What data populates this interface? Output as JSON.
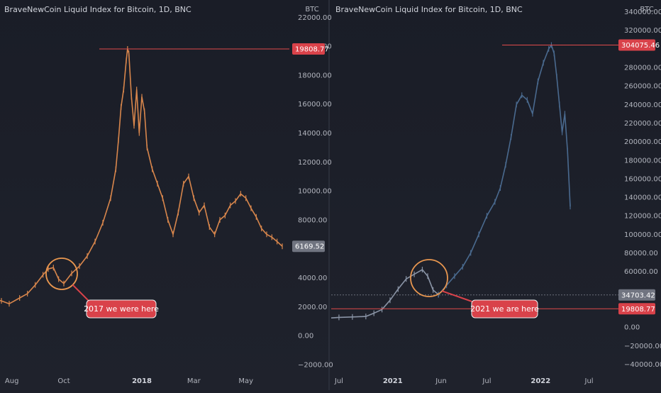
{
  "chart_data": [
    {
      "type": "line",
      "title": "BraveNewCoin Liquid Index for Bitcoin, 1D, BNC",
      "currency": "BTC",
      "y_ticks": [
        22000,
        20000,
        18000,
        16000,
        14000,
        12000,
        10000,
        8000,
        6000,
        4000,
        2000,
        0,
        -2000
      ],
      "y_tick_labels": [
        "22000.00",
        "20000.00",
        "18000.00",
        "16000.00",
        "14000.00",
        "12000.00",
        "10000.00",
        "8000.00",
        "",
        "4000.00",
        "2000.00",
        "0.00",
        "−2000.00"
      ],
      "ylim": [
        -2300,
        22700
      ],
      "x_labels": [
        {
          "label": "Aug",
          "x": 1,
          "bold": false
        },
        {
          "label": "Oct",
          "x": 3,
          "bold": false
        },
        {
          "label": "2018",
          "x": 6,
          "bold": true
        },
        {
          "label": "Mar",
          "x": 8,
          "bold": false
        },
        {
          "label": "May",
          "x": 10,
          "bold": false
        }
      ],
      "xlim": [
        0,
        12
      ],
      "series": [
        {
          "color": "#d8864c",
          "x": [
            -0.4,
            0.1,
            0.6,
            0.9,
            1.3,
            1.6,
            1.9,
            2.2,
            2.4,
            2.6,
            2.8,
            3.0,
            3.3,
            3.6,
            3.9,
            4.2,
            4.5,
            4.8,
            5.0,
            5.1,
            5.2,
            5.3,
            5.4,
            5.45,
            5.5,
            5.6,
            5.7,
            5.8,
            5.9,
            6.0,
            6.1,
            6.2,
            6.4,
            6.6,
            6.8,
            7.0,
            7.2,
            7.4,
            7.6,
            7.8,
            8.0,
            8.2,
            8.4,
            8.6,
            8.8,
            9.0,
            9.2,
            9.4,
            9.6,
            9.8,
            10.0,
            10.2,
            10.4,
            10.6,
            10.8,
            11.0,
            11.2,
            11.4
          ],
          "y": [
            2800,
            2600,
            2400,
            2200,
            2600,
            2900,
            3500,
            4200,
            4600,
            4700,
            3900,
            3600,
            4300,
            4800,
            5500,
            6500,
            7800,
            9500,
            11500,
            13500,
            15800,
            17000,
            19000,
            19808.77,
            19500,
            16500,
            14500,
            17000,
            14000,
            16500,
            15500,
            13000,
            11500,
            10500,
            9500,
            8000,
            7000,
            8500,
            10500,
            11000,
            9500,
            8500,
            9000,
            7500,
            7000,
            8000,
            8300,
            9000,
            9300,
            9800,
            9500,
            8800,
            8200,
            7400,
            7000,
            6800,
            6500,
            6169.52
          ]
        }
      ],
      "annotations": [
        {
          "text": "19808.77",
          "value": 19808.77,
          "type": "horizontal-line"
        },
        {
          "text": "6169.52",
          "value": 6169.52,
          "type": "last-price"
        },
        {
          "text": "2017 we were here",
          "type": "callout"
        }
      ]
    },
    {
      "type": "line",
      "title": "BraveNewCoin Liquid Index for Bitcoin, 1D, BNC",
      "currency": "BTC",
      "y_ticks": [
        340000,
        320000,
        300000,
        280000,
        260000,
        240000,
        220000,
        200000,
        180000,
        160000,
        140000,
        120000,
        100000,
        80000,
        60000,
        40000,
        20000,
        0,
        -20000,
        -40000
      ],
      "y_tick_labels": [
        "340000.00",
        "320000.00",
        "",
        "280000.00",
        "260000.00",
        "240000.00",
        "220000.00",
        "200000.00",
        "180000.00",
        "160000.00",
        "140000.00",
        "120000.00",
        "100000.00",
        "80000.00",
        "60000.00",
        "",
        "",
        "0.00",
        "−20000.00",
        "−40000.00"
      ],
      "ylim": [
        -45000,
        345000
      ],
      "x_labels": [
        {
          "label": "Jul",
          "x": 1,
          "bold": false
        },
        {
          "label": "2021",
          "x": 3,
          "bold": true
        },
        {
          "label": "Jun",
          "x": 4.8,
          "bold": false
        },
        {
          "label": "Jul",
          "x": 6.5,
          "bold": false
        },
        {
          "label": "2022",
          "x": 8.5,
          "bold": true
        },
        {
          "label": "Jul",
          "x": 10.3,
          "bold": false
        }
      ],
      "xlim": [
        0,
        12
      ],
      "series": [
        {
          "color": "#8a94a6",
          "x": [
            0,
            0.5,
            1,
            1.5,
            2,
            2.3,
            2.6,
            2.9,
            3.2,
            3.5,
            3.8,
            4.1,
            4.3,
            4.5,
            4.7
          ],
          "y": [
            9000,
            9500,
            10500,
            11000,
            11500,
            15000,
            19000,
            29000,
            41000,
            52000,
            57000,
            62000,
            55000,
            40000,
            35000
          ]
        },
        {
          "color": "#4a6a8f",
          "x": [
            4.7,
            5.0,
            5.3,
            5.6,
            5.9,
            6.2,
            6.5,
            6.8,
            7.0,
            7.2,
            7.4,
            7.6,
            7.8,
            8.0,
            8.2,
            8.4,
            8.6,
            8.8,
            8.9,
            9.0,
            9.1,
            9.2,
            9.3,
            9.4,
            9.5,
            9.6
          ],
          "y": [
            35000,
            45000,
            55000,
            65000,
            80000,
            100000,
            120000,
            135000,
            150000,
            175000,
            205000,
            240000,
            250000,
            245000,
            230000,
            265000,
            285000,
            300000,
            304075.46,
            295000,
            270000,
            240000,
            210000,
            230000,
            190000,
            130000
          ]
        }
      ],
      "annotations": [
        {
          "text": "304075.46",
          "value": 304075.46,
          "type": "horizontal-line"
        },
        {
          "text": "34703.42",
          "value": 34703.42,
          "type": "last-price"
        },
        {
          "text": "19808.77",
          "value": 19808.77,
          "type": "horizontal-line"
        },
        {
          "text": "2021 we are here",
          "type": "callout"
        }
      ]
    }
  ]
}
